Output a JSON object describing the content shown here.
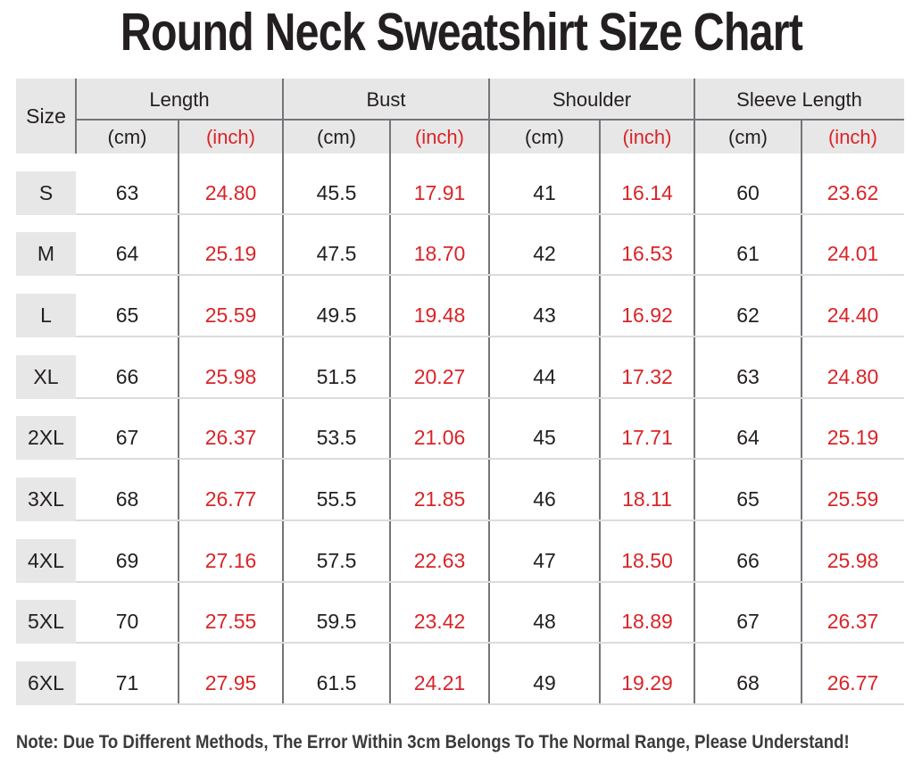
{
  "title": "Round Neck Sweatshirt Size Chart",
  "header": {
    "size": "Size",
    "groups": [
      "Length",
      "Bust",
      "Shoulder",
      "Sleeve Length"
    ],
    "unit_cm": "(cm)",
    "unit_inch": "(inch)"
  },
  "chart_data": {
    "type": "table",
    "title": "Round Neck Sweatshirt Size Chart",
    "columns": [
      "Size",
      "Length (cm)",
      "Length (inch)",
      "Bust (cm)",
      "Bust (inch)",
      "Shoulder (cm)",
      "Shoulder (inch)",
      "Sleeve Length (cm)",
      "Sleeve Length (inch)"
    ],
    "rows": [
      [
        "S",
        "63",
        "24.80",
        "45.5",
        "17.91",
        "41",
        "16.14",
        "60",
        "23.62"
      ],
      [
        "M",
        "64",
        "25.19",
        "47.5",
        "18.70",
        "42",
        "16.53",
        "61",
        "24.01"
      ],
      [
        "L",
        "65",
        "25.59",
        "49.5",
        "19.48",
        "43",
        "16.92",
        "62",
        "24.40"
      ],
      [
        "XL",
        "66",
        "25.98",
        "51.5",
        "20.27",
        "44",
        "17.32",
        "63",
        "24.80"
      ],
      [
        "2XL",
        "67",
        "26.37",
        "53.5",
        "21.06",
        "45",
        "17.71",
        "64",
        "25.19"
      ],
      [
        "3XL",
        "68",
        "26.77",
        "55.5",
        "21.85",
        "46",
        "18.11",
        "65",
        "25.59"
      ],
      [
        "4XL",
        "69",
        "27.16",
        "57.5",
        "22.63",
        "47",
        "18.50",
        "66",
        "25.98"
      ],
      [
        "5XL",
        "70",
        "27.55",
        "59.5",
        "23.42",
        "48",
        "18.89",
        "67",
        "26.37"
      ],
      [
        "6XL",
        "71",
        "27.95",
        "61.5",
        "24.21",
        "49",
        "19.29",
        "68",
        "26.77"
      ]
    ]
  },
  "note": "Note: Due To Different Methods, The Error Within 3cm Belongs To The Normal Range, Please Understand!",
  "colors": {
    "accent_red": "#da2428",
    "header_bg": "#e8e7e7",
    "grid_line_dark": "#74747a",
    "grid_line_light": "#dcdcdc",
    "text_dark": "#231f20"
  }
}
